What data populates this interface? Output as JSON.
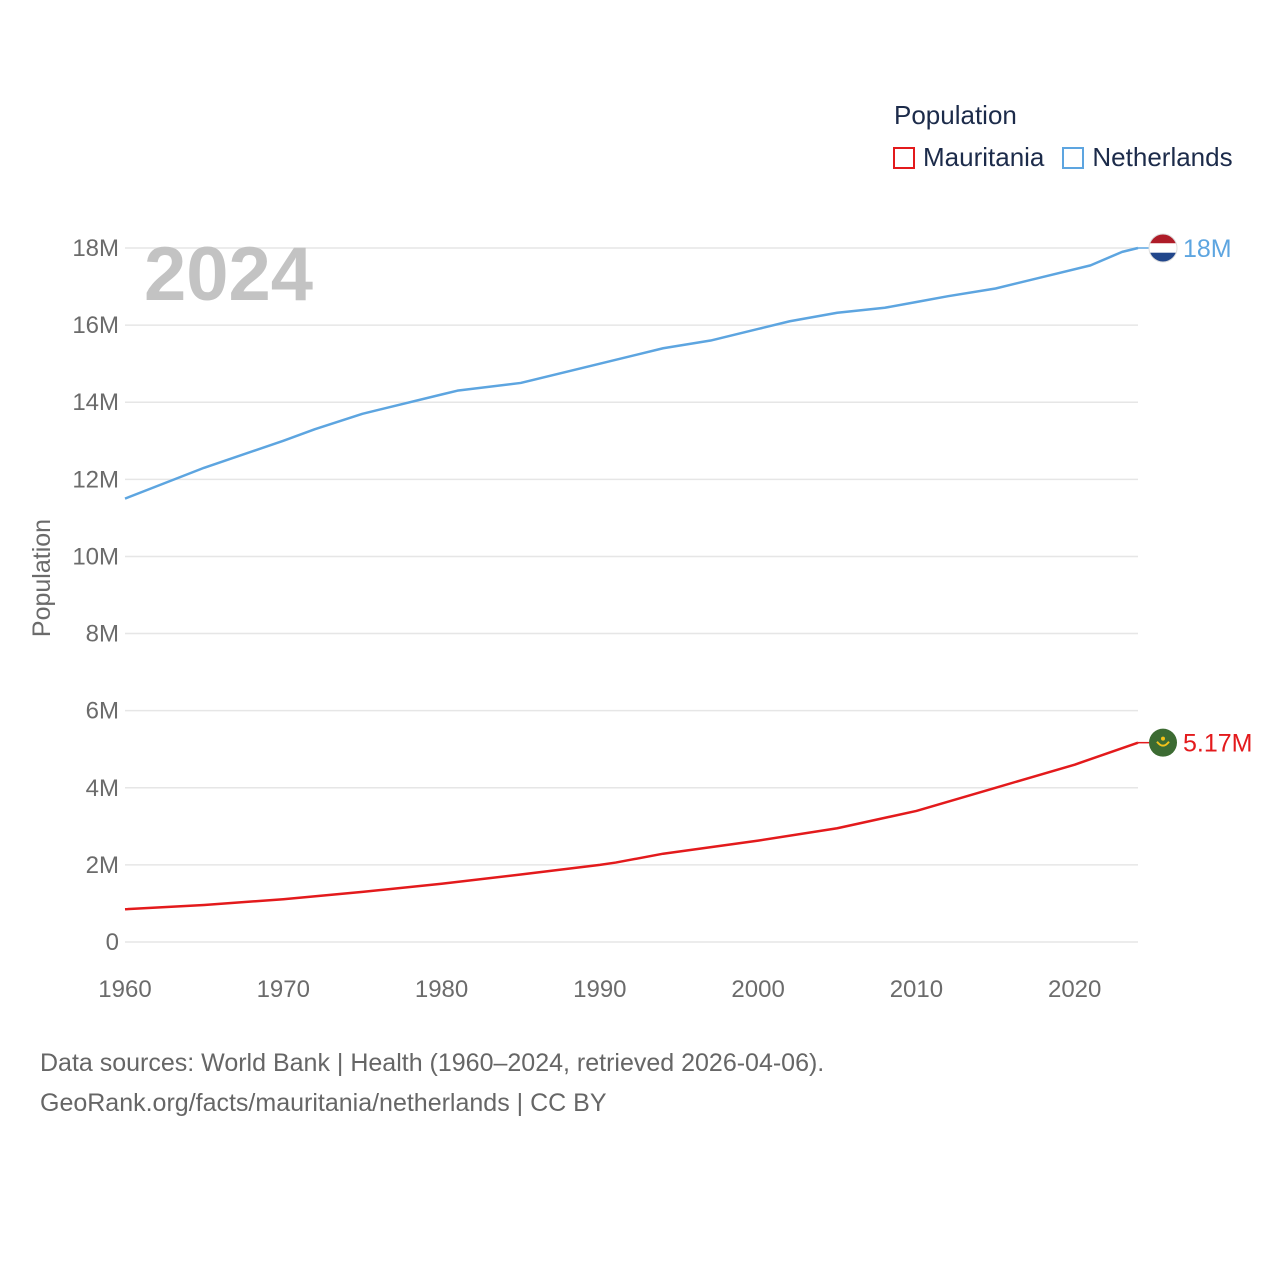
{
  "legend": {
    "title": "Population",
    "items": [
      {
        "name": "Mauritania",
        "color": "#e31a1c"
      },
      {
        "name": "Netherlands",
        "color": "#5da5e0"
      }
    ]
  },
  "year_label": "2024",
  "footer": {
    "line1": "Data sources: World Bank | Health (1960–2024, retrieved 2026-04-06).",
    "line2": "GeoRank.org/facts/mauritania/netherlands | CC BY"
  },
  "icons": {
    "mauritania_flag": "mauritania-flag-icon",
    "netherlands_flag": "netherlands-flag-icon"
  },
  "chart_data": {
    "type": "line",
    "title": "Population",
    "xlabel": "",
    "ylabel": "Population",
    "xlim": [
      1960,
      2024
    ],
    "ylim": [
      0,
      18000000
    ],
    "x_ticks": [
      1960,
      1970,
      1980,
      1990,
      2000,
      2010,
      2020
    ],
    "x_tick_labels": [
      "1960",
      "1970",
      "1980",
      "1990",
      "2000",
      "2010",
      "2020"
    ],
    "y_ticks": [
      0,
      2000000,
      4000000,
      6000000,
      8000000,
      10000000,
      12000000,
      14000000,
      16000000,
      18000000
    ],
    "y_tick_labels": [
      "0",
      "2M",
      "4M",
      "6M",
      "8M",
      "10M",
      "12M",
      "14M",
      "16M",
      "18M"
    ],
    "grid": true,
    "legend_position": "top-right",
    "series": [
      {
        "name": "Netherlands",
        "color": "#5da5e0",
        "end_label": "18M",
        "x": [
          1960,
          1965,
          1970,
          1972,
          1975,
          1980,
          1981,
          1985,
          1990,
          1994,
          1997,
          2000,
          2002,
          2005,
          2008,
          2010,
          2012,
          2015,
          2018,
          2021,
          2023,
          2024
        ],
        "values": [
          11500000,
          12300000,
          13000000,
          13300000,
          13700000,
          14200000,
          14300000,
          14500000,
          15000000,
          15400000,
          15600000,
          15900000,
          16100000,
          16320000,
          16450000,
          16600000,
          16750000,
          16950000,
          17250000,
          17550000,
          17900000,
          18000000
        ]
      },
      {
        "name": "Mauritania",
        "color": "#e31a1c",
        "end_label": "5.17M",
        "x": [
          1960,
          1965,
          1970,
          1975,
          1980,
          1985,
          1990,
          1991,
          1994,
          2000,
          2005,
          2010,
          2015,
          2020,
          2024
        ],
        "values": [
          850000,
          960000,
          1110000,
          1300000,
          1510000,
          1750000,
          2000000,
          2060000,
          2290000,
          2630000,
          2950000,
          3400000,
          4000000,
          4600000,
          5170000
        ]
      }
    ]
  }
}
